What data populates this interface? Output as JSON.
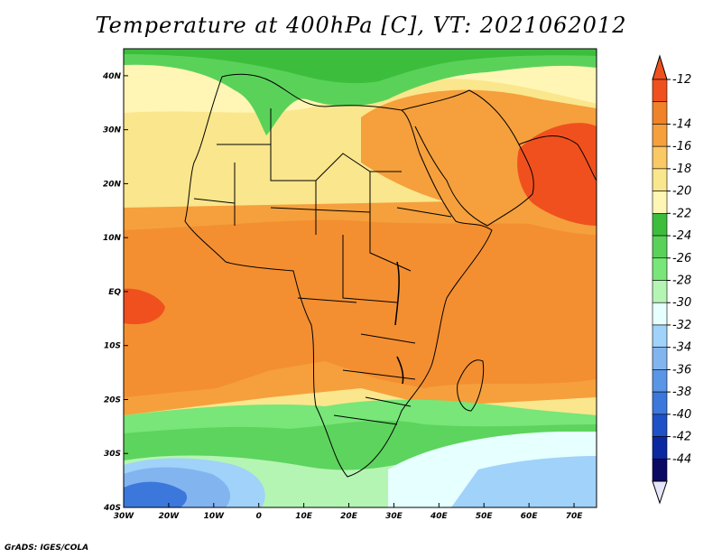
{
  "title": "Temperature at 400hPa [C], VT: 2021062012",
  "credit": "GrADS: IGES/COLA",
  "map": {
    "lat_labels": [
      "40N",
      "30N",
      "20N",
      "10N",
      "EQ",
      "10S",
      "20S",
      "30S",
      "40S"
    ],
    "lon_labels": [
      "30W",
      "20W",
      "10W",
      "0",
      "10E",
      "20E",
      "30E",
      "40E",
      "50E",
      "60E",
      "70E"
    ]
  },
  "colorbar": {
    "labels": [
      "-12",
      "-14",
      "-16",
      "-18",
      "-20",
      "-22",
      "-24",
      "-26",
      "-28",
      "-30",
      "-32",
      "-34",
      "-36",
      "-38",
      "-40",
      "-42",
      "-44"
    ],
    "colors": [
      "#f0501e",
      "#f08228",
      "#f5a03c",
      "#fac864",
      "#fae68c",
      "#fff5b4",
      "#3cbe3c",
      "#5ad25a",
      "#78e678",
      "#b4f5b4",
      "#e6ffff",
      "#a0d2fa",
      "#82b4f0",
      "#5a96e6",
      "#3c78dc",
      "#1e50c8",
      "#0a28a0",
      "#0a0a64"
    ],
    "over_color": "#f0501e",
    "under_color": "#e6e6fa"
  }
}
